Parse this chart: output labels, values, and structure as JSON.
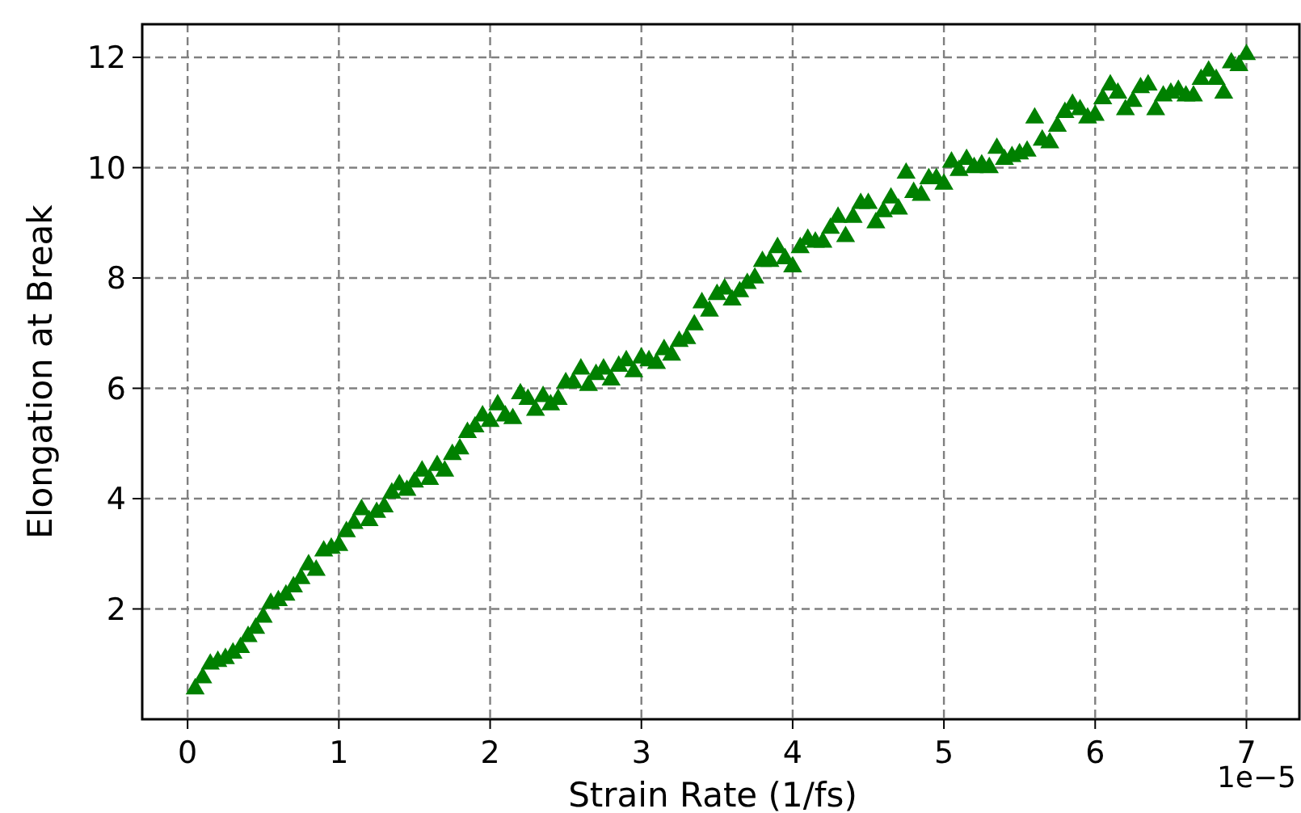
{
  "chart_data": {
    "type": "scatter",
    "xlabel": "Strain Rate (1/fs)",
    "ylabel": "Elongation at Break",
    "annotations": [
      "1e−5"
    ],
    "xlim": [
      -0.3,
      7.35
    ],
    "xticks": [
      0,
      1,
      2,
      3,
      4,
      5,
      6,
      7
    ],
    "ylim": [
      0,
      12.6
    ],
    "yticks": [
      2,
      4,
      6,
      8,
      10,
      12
    ],
    "grid": true,
    "marker": "triangle",
    "series": [
      {
        "color": "#008000",
        "x": [
          0.05,
          0.1,
          0.15,
          0.2,
          0.25,
          0.3,
          0.35,
          0.4,
          0.45,
          0.5,
          0.55,
          0.6,
          0.65,
          0.7,
          0.75,
          0.8,
          0.85,
          0.9,
          0.95,
          1.0,
          1.05,
          1.1,
          1.15,
          1.2,
          1.25,
          1.3,
          1.35,
          1.4,
          1.45,
          1.5,
          1.55,
          1.6,
          1.65,
          1.7,
          1.75,
          1.8,
          1.85,
          1.9,
          1.95,
          2.0,
          2.05,
          2.1,
          2.15,
          2.2,
          2.25,
          2.3,
          2.35,
          2.4,
          2.45,
          2.5,
          2.55,
          2.6,
          2.65,
          2.7,
          2.75,
          2.8,
          2.85,
          2.9,
          2.95,
          3.0,
          3.05,
          3.1,
          3.15,
          3.2,
          3.25,
          3.3,
          3.35,
          3.4,
          3.45,
          3.5,
          3.55,
          3.6,
          3.65,
          3.7,
          3.75,
          3.8,
          3.85,
          3.9,
          3.95,
          4.0,
          4.05,
          4.1,
          4.15,
          4.2,
          4.25,
          4.3,
          4.35,
          4.4,
          4.45,
          4.5,
          4.55,
          4.6,
          4.65,
          4.7,
          4.75,
          4.8,
          4.85,
          4.9,
          4.95,
          5.0,
          5.05,
          5.1,
          5.15,
          5.2,
          5.25,
          5.3,
          5.35,
          5.4,
          5.45,
          5.5,
          5.55,
          5.6,
          5.65,
          5.7,
          5.75,
          5.8,
          5.85,
          5.9,
          5.95,
          6.0,
          6.05,
          6.1,
          6.15,
          6.2,
          6.25,
          6.3,
          6.35,
          6.4,
          6.45,
          6.5,
          6.55,
          6.6,
          6.65,
          6.7,
          6.75,
          6.8,
          6.85,
          6.9,
          6.95,
          7.0
        ],
        "values": [
          0.55,
          0.75,
          1.0,
          1.05,
          1.1,
          1.2,
          1.3,
          1.5,
          1.65,
          1.85,
          2.1,
          2.15,
          2.25,
          2.4,
          2.55,
          2.8,
          2.7,
          3.05,
          3.1,
          3.15,
          3.4,
          3.55,
          3.8,
          3.6,
          3.75,
          3.85,
          4.1,
          4.25,
          4.15,
          4.3,
          4.5,
          4.35,
          4.6,
          4.5,
          4.8,
          4.9,
          5.2,
          5.3,
          5.5,
          5.4,
          5.7,
          5.5,
          5.45,
          5.9,
          5.8,
          5.6,
          5.85,
          5.7,
          5.8,
          6.1,
          6.1,
          6.35,
          6.05,
          6.25,
          6.35,
          6.15,
          6.4,
          6.5,
          6.3,
          6.55,
          6.5,
          6.45,
          6.7,
          6.6,
          6.85,
          6.9,
          7.15,
          7.55,
          7.4,
          7.7,
          7.8,
          7.6,
          7.75,
          7.9,
          8.0,
          8.3,
          8.3,
          8.55,
          8.35,
          8.2,
          8.55,
          8.7,
          8.65,
          8.65,
          8.9,
          9.1,
          8.75,
          9.1,
          9.35,
          9.35,
          9.0,
          9.2,
          9.45,
          9.25,
          9.9,
          9.55,
          9.5,
          9.8,
          9.8,
          9.7,
          10.1,
          9.95,
          10.15,
          10.0,
          10.05,
          10.0,
          10.35,
          10.15,
          10.2,
          10.25,
          10.3,
          10.9,
          10.5,
          10.45,
          10.75,
          11.0,
          11.15,
          11.05,
          10.9,
          10.95,
          11.25,
          11.5,
          11.35,
          11.05,
          11.2,
          11.45,
          11.5,
          11.05,
          11.3,
          11.35,
          11.4,
          11.3,
          11.3,
          11.6,
          11.75,
          11.6,
          11.35,
          11.9,
          11.85,
          12.05
        ]
      }
    ]
  }
}
